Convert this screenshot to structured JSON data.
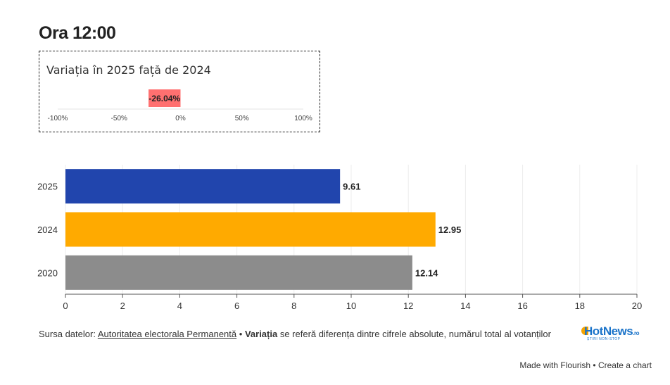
{
  "header": {
    "title": "Ora 12:00"
  },
  "variation": {
    "title": "Variația în 2025 față de 2024",
    "value": -26.04,
    "value_label": "-26.04%",
    "bar_color": "#ff7070",
    "ticks": [
      "-100%",
      "-50%",
      "0%",
      "50%",
      "100%"
    ]
  },
  "chart_data": {
    "type": "bar",
    "orientation": "horizontal",
    "categories": [
      "2025",
      "2024",
      "2020"
    ],
    "values": [
      9.61,
      12.95,
      12.14
    ],
    "value_labels": [
      "9.61",
      "12.95",
      "12.14"
    ],
    "colors": [
      "#2145ad",
      "#ffaa00",
      "#8c8c8c"
    ],
    "xlim": [
      0,
      20
    ],
    "x_ticks": [
      "0",
      "2",
      "4",
      "6",
      "8",
      "10",
      "12",
      "14",
      "16",
      "18",
      "20"
    ],
    "grid": true
  },
  "footer": {
    "source_prefix": "Sursa datelor:",
    "source_link": "Autoritatea electorala Permanentă",
    "separator": "•",
    "note_bold": "Variația",
    "note_rest": "se referă diferența dintre cifrele absolute, numărul total al votanților"
  },
  "logo": {
    "main": "HotNews",
    "suffix": ".ro",
    "tagline": "ȘTIRI NON-STOP"
  },
  "credit": {
    "made_with": "Made with Flourish",
    "separator": "•",
    "create": "Create a chart"
  }
}
